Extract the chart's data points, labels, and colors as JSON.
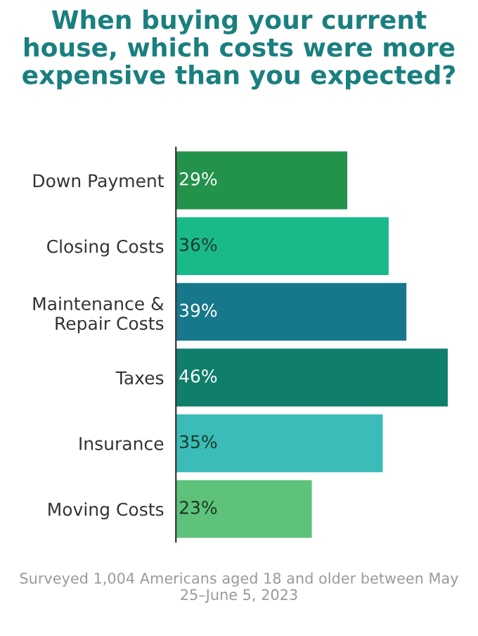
{
  "chart_data": {
    "type": "bar",
    "orientation": "horizontal",
    "title": "When buying your current house, which costs were more expensive than you expected?",
    "categories": [
      "Down Payment",
      "Closing Costs",
      "Maintenance &\nRepair Costs",
      "Taxes",
      "Insurance",
      "Moving Costs"
    ],
    "values": [
      29,
      36,
      39,
      46,
      35,
      23
    ],
    "value_labels": [
      "29%",
      "36%",
      "39%",
      "46%",
      "35%",
      "23%"
    ],
    "colors": [
      "#23924a",
      "#1ab98a",
      "#16788a",
      "#0f7e6a",
      "#3bbcb8",
      "#5ec27a"
    ],
    "annotations": [
      "Surveyed 1,004 Americans aged 18 and older between May 25–June 5, 2023"
    ],
    "grid": false,
    "legend": false
  }
}
